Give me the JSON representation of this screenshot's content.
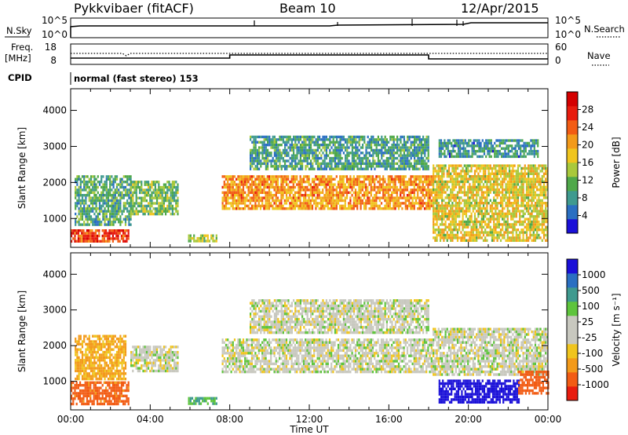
{
  "header": {
    "radar": "Pykkvibaer (fitACF)",
    "beam": "Beam 10",
    "date": "12/Apr/2015",
    "mode": "normal (fast stereo) 153"
  },
  "left_labels": {
    "nsky": "N.Sky",
    "freq_line1": "Freq.",
    "freq_line2": "[MHz]",
    "cpid": "CPID"
  },
  "right_labels": {
    "nsearch": "N.Search",
    "nave": "Nave"
  },
  "noise_panel": {
    "left_ticks": [
      "10^5",
      "10^0"
    ],
    "right_ticks": [
      "10^5",
      "10^0"
    ]
  },
  "freq_panel": {
    "left_ticks": [
      "18",
      "8"
    ],
    "right_ticks": [
      "60",
      "0"
    ]
  },
  "colors": {
    "power_scale": [
      "#1a10d8",
      "#2a6fc2",
      "#3f9a8f",
      "#4fa84a",
      "#a9c93c",
      "#f0c51e",
      "#f39a1a",
      "#f25c14",
      "#e81c0e",
      "#d40000"
    ],
    "velocity_scale": [
      "#e81c0e",
      "#f25c14",
      "#f39a1a",
      "#f0c51e",
      "#c8c8bf",
      "#c8c8bf",
      "#5ec43c",
      "#3f9a8f",
      "#2a6fc2",
      "#1a10d8"
    ]
  },
  "chart_data": [
    {
      "type": "heatmap",
      "name": "power",
      "ylabel": "Slant Range [km]",
      "ylim": [
        200,
        4600
      ],
      "yticks": [
        1000,
        2000,
        3000,
        4000
      ],
      "xlim": [
        0,
        24
      ],
      "colorbar_label": "Power [dB]",
      "colorbar_ticks": [
        "4",
        "8",
        "12",
        "16",
        "20",
        "24",
        "28"
      ],
      "bands": [
        {
          "t0": 0.0,
          "t1": 2.9,
          "r0": 400,
          "r1": 700,
          "value": 26
        },
        {
          "t0": 0.2,
          "t1": 3.0,
          "r0": 800,
          "r1": 2200,
          "value": 10
        },
        {
          "t0": 3.0,
          "t1": 5.4,
          "r0": 1150,
          "r1": 2050,
          "value": 12
        },
        {
          "t0": 5.9,
          "t1": 7.3,
          "r0": 380,
          "r1": 560,
          "value": 14
        },
        {
          "t0": 7.6,
          "t1": 18.2,
          "r0": 1250,
          "r1": 2200,
          "value": 21
        },
        {
          "t0": 9.0,
          "t1": 18.0,
          "r0": 2400,
          "r1": 3300,
          "value": 9
        },
        {
          "t0": 18.2,
          "t1": 24.0,
          "r0": 400,
          "r1": 2500,
          "value": 17
        },
        {
          "t0": 18.5,
          "t1": 23.5,
          "r0": 2700,
          "r1": 3200,
          "value": 8
        }
      ]
    },
    {
      "type": "heatmap",
      "name": "velocity",
      "ylabel": "Slant Range [km]",
      "ylim": [
        200,
        4600
      ],
      "yticks": [
        1000,
        2000,
        3000,
        4000
      ],
      "xlim": [
        0,
        24
      ],
      "xticks": [
        "00:00",
        "04:00",
        "08:00",
        "12:00",
        "16:00",
        "20:00",
        "00:00"
      ],
      "xlabel": "Time UT",
      "colorbar_label": "Velocity [m s⁻¹]",
      "colorbar_ticks": [
        "-1000",
        "-500",
        "-100",
        "-25",
        "25",
        "100",
        "500",
        "1000"
      ],
      "bands": [
        {
          "t0": 0.0,
          "t1": 2.9,
          "r0": 400,
          "r1": 1000,
          "value": -300
        },
        {
          "t0": 0.2,
          "t1": 2.8,
          "r0": 1100,
          "r1": 2300,
          "value": -120
        },
        {
          "t0": 3.0,
          "t1": 5.4,
          "r0": 1300,
          "r1": 2000,
          "value": 0
        },
        {
          "t0": 5.9,
          "t1": 7.3,
          "r0": 380,
          "r1": 560,
          "value": 150
        },
        {
          "t0": 7.6,
          "t1": 18.2,
          "r0": 1250,
          "r1": 2200,
          "value": 0
        },
        {
          "t0": 9.0,
          "t1": 18.0,
          "r0": 2400,
          "r1": 3300,
          "value": 0
        },
        {
          "t0": 18.2,
          "t1": 24.0,
          "r0": 1200,
          "r1": 2500,
          "value": 0
        },
        {
          "t0": 18.5,
          "t1": 22.5,
          "r0": 450,
          "r1": 1050,
          "value": 600
        },
        {
          "t0": 22.5,
          "t1": 24.0,
          "r0": 700,
          "r1": 1300,
          "value": -400
        }
      ]
    }
  ]
}
